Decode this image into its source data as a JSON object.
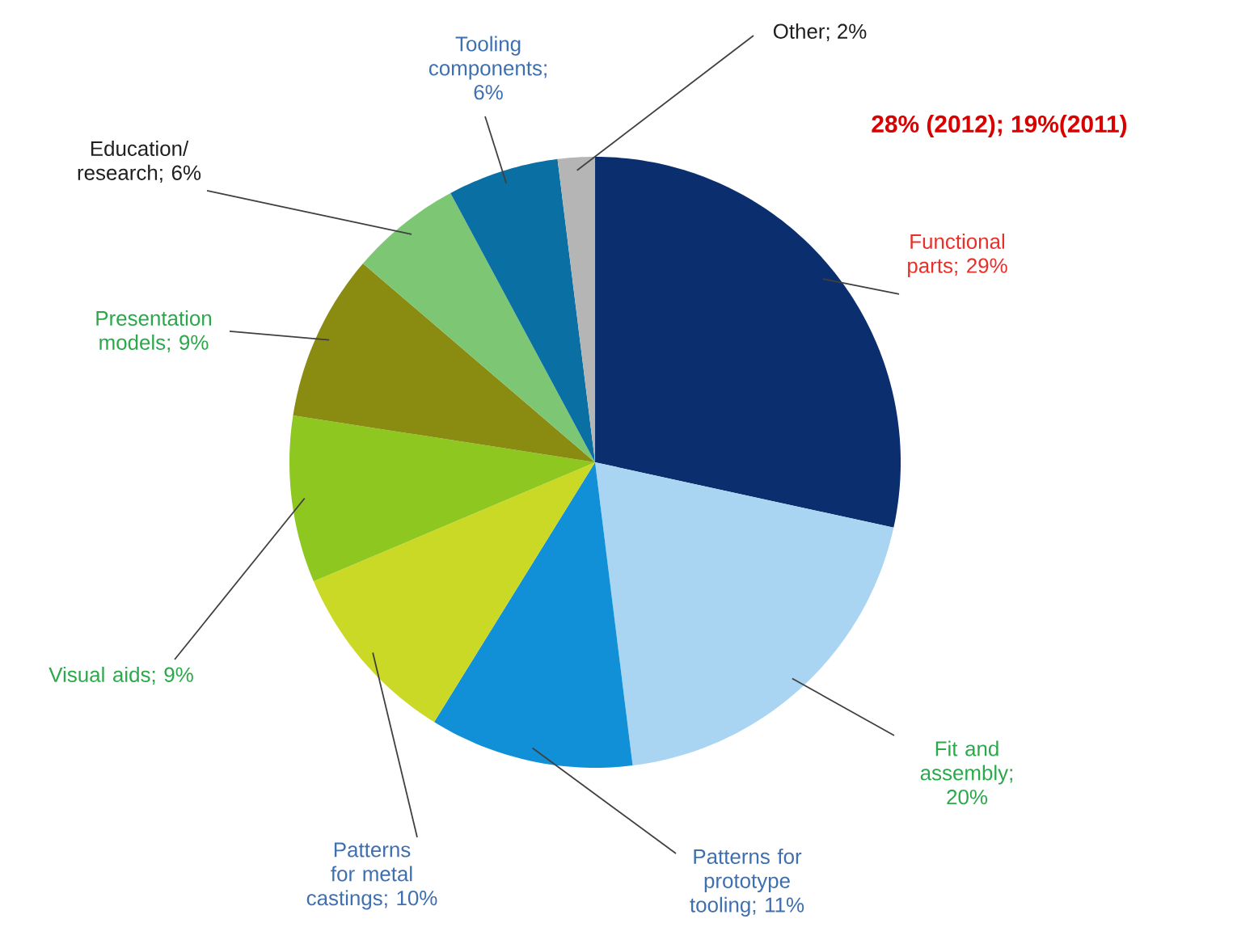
{
  "chart_data": {
    "type": "pie",
    "categories": [
      "Functional parts; 29%",
      "Fit and assembly; 20%",
      "Patterns for prototype tooling; 11%",
      "Patterns for metal castings; 10%",
      "Visual aids; 9%",
      "Presentation models; 9%",
      "Education/ research; 6%",
      "Tooling components; 6%",
      "Other; 2%"
    ],
    "values": [
      29,
      20,
      11,
      10,
      9,
      9,
      6,
      6,
      2
    ],
    "colors": [
      "#0b2f6e",
      "#a9d5f2",
      "#1190d8",
      "#c9d925",
      "#8dc71f",
      "#8a8c12",
      "#7cc674",
      "#0a6fa3",
      "#b5b5b5"
    ],
    "annotations": [
      "28% (2012); 19%(2011)"
    ]
  }
}
